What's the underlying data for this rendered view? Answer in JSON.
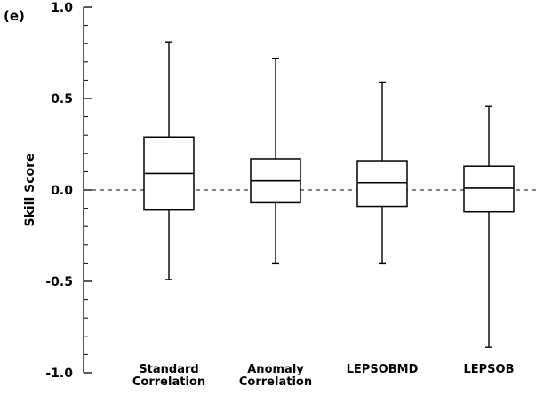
{
  "chart_data": {
    "type": "box",
    "panel_label": "(e)",
    "ylabel": "Skill Score",
    "ylim": [
      -1.0,
      1.0
    ],
    "yticks": [
      -1.0,
      -0.5,
      0.0,
      0.5,
      1.0
    ],
    "ytick_labels": [
      "-1.0",
      "-0.5",
      "0.0",
      "0.5",
      "1.0"
    ],
    "reference_line": {
      "y": 0.0,
      "style": "dashed"
    },
    "categories": [
      [
        "Standard",
        "Correlation"
      ],
      [
        "Anomaly",
        "Correlation"
      ],
      [
        "LEPSOBMD"
      ],
      [
        "LEPSOB"
      ]
    ],
    "boxes": [
      {
        "min": -0.49,
        "q1": -0.11,
        "median": 0.09,
        "q3": 0.29,
        "max": 0.81
      },
      {
        "min": -0.4,
        "q1": -0.07,
        "median": 0.05,
        "q3": 0.17,
        "max": 0.72
      },
      {
        "min": -0.4,
        "q1": -0.09,
        "median": 0.04,
        "q3": 0.16,
        "max": 0.59
      },
      {
        "min": -0.86,
        "q1": -0.12,
        "median": 0.01,
        "q3": 0.13,
        "max": 0.46
      }
    ]
  }
}
